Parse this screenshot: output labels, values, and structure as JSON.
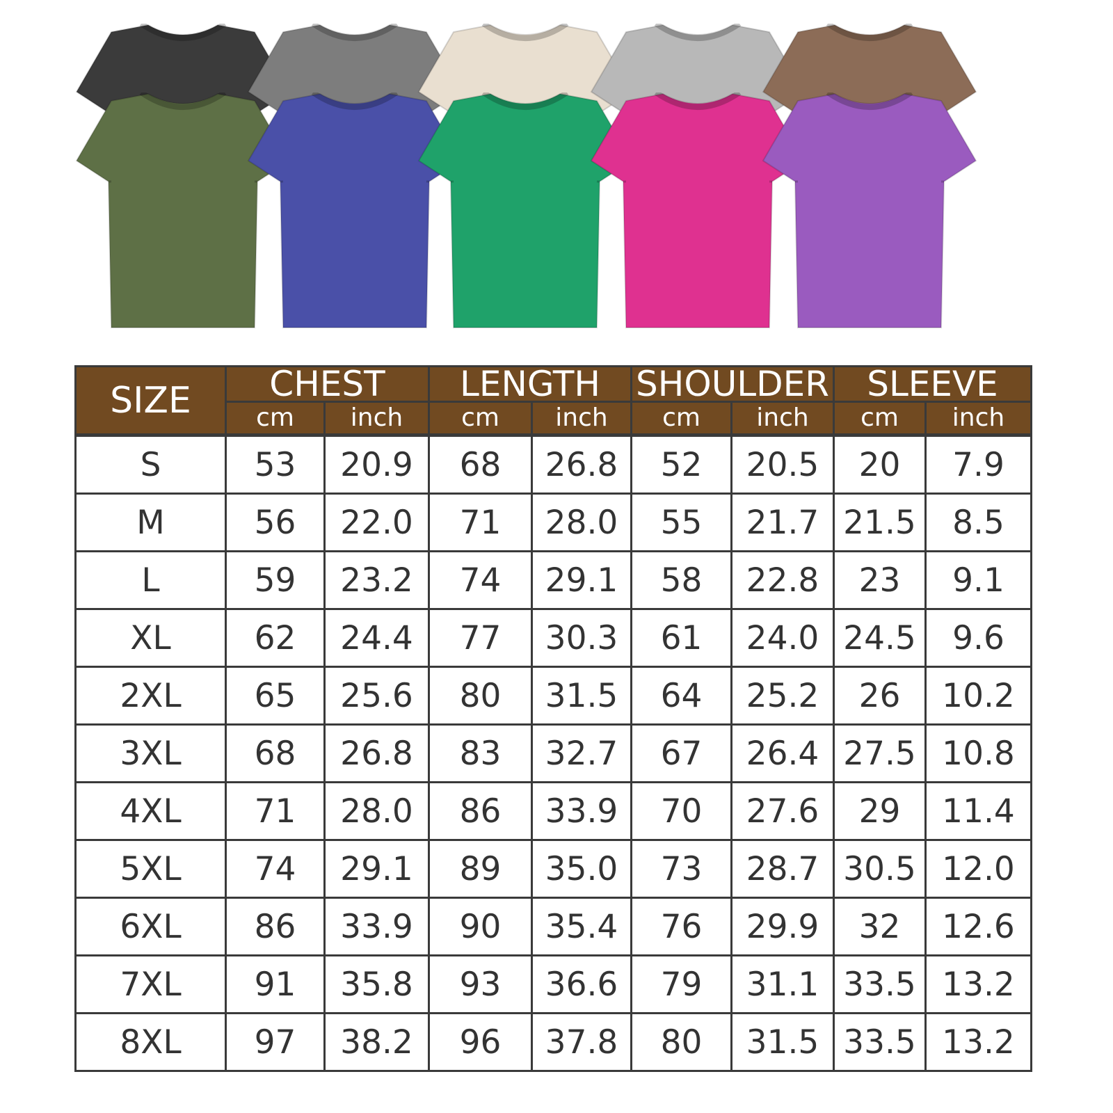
{
  "product_colors": {
    "back_row": [
      {
        "name": "black",
        "hex": "#3b3b3b"
      },
      {
        "name": "gray",
        "hex": "#7d7d7d"
      },
      {
        "name": "cream",
        "hex": "#e9dfd0"
      },
      {
        "name": "light-gray",
        "hex": "#b8b8b8"
      },
      {
        "name": "brown",
        "hex": "#8c6c57"
      }
    ],
    "front_row": [
      {
        "name": "olive",
        "hex": "#5e7046"
      },
      {
        "name": "blue",
        "hex": "#4a50a8"
      },
      {
        "name": "green",
        "hex": "#1fa26a"
      },
      {
        "name": "pink",
        "hex": "#df3190"
      },
      {
        "name": "purple",
        "hex": "#9a5bbf"
      }
    ]
  },
  "header_color": "#714a21",
  "table": {
    "size_label": "SIZE",
    "groups": [
      "CHEST",
      "LENGTH",
      "SHOULDER",
      "SLEEVE"
    ],
    "units": [
      "cm",
      "inch",
      "cm",
      "inch",
      "cm",
      "inch",
      "cm",
      "inch"
    ],
    "rows": [
      [
        "S",
        "53",
        "20.9",
        "68",
        "26.8",
        "52",
        "20.5",
        "20",
        "7.9"
      ],
      [
        "M",
        "56",
        "22.0",
        "71",
        "28.0",
        "55",
        "21.7",
        "21.5",
        "8.5"
      ],
      [
        "L",
        "59",
        "23.2",
        "74",
        "29.1",
        "58",
        "22.8",
        "23",
        "9.1"
      ],
      [
        "XL",
        "62",
        "24.4",
        "77",
        "30.3",
        "61",
        "24.0",
        "24.5",
        "9.6"
      ],
      [
        "2XL",
        "65",
        "25.6",
        "80",
        "31.5",
        "64",
        "25.2",
        "26",
        "10.2"
      ],
      [
        "3XL",
        "68",
        "26.8",
        "83",
        "32.7",
        "67",
        "26.4",
        "27.5",
        "10.8"
      ],
      [
        "4XL",
        "71",
        "28.0",
        "86",
        "33.9",
        "70",
        "27.6",
        "29",
        "11.4"
      ],
      [
        "5XL",
        "74",
        "29.1",
        "89",
        "35.0",
        "73",
        "28.7",
        "30.5",
        "12.0"
      ],
      [
        "6XL",
        "86",
        "33.9",
        "90",
        "35.4",
        "76",
        "29.9",
        "32",
        "12.6"
      ],
      [
        "7XL",
        "91",
        "35.8",
        "93",
        "36.6",
        "79",
        "31.1",
        "33.5",
        "13.2"
      ],
      [
        "8XL",
        "97",
        "38.2",
        "96",
        "37.8",
        "80",
        "31.5",
        "33.5",
        "13.2"
      ]
    ]
  }
}
